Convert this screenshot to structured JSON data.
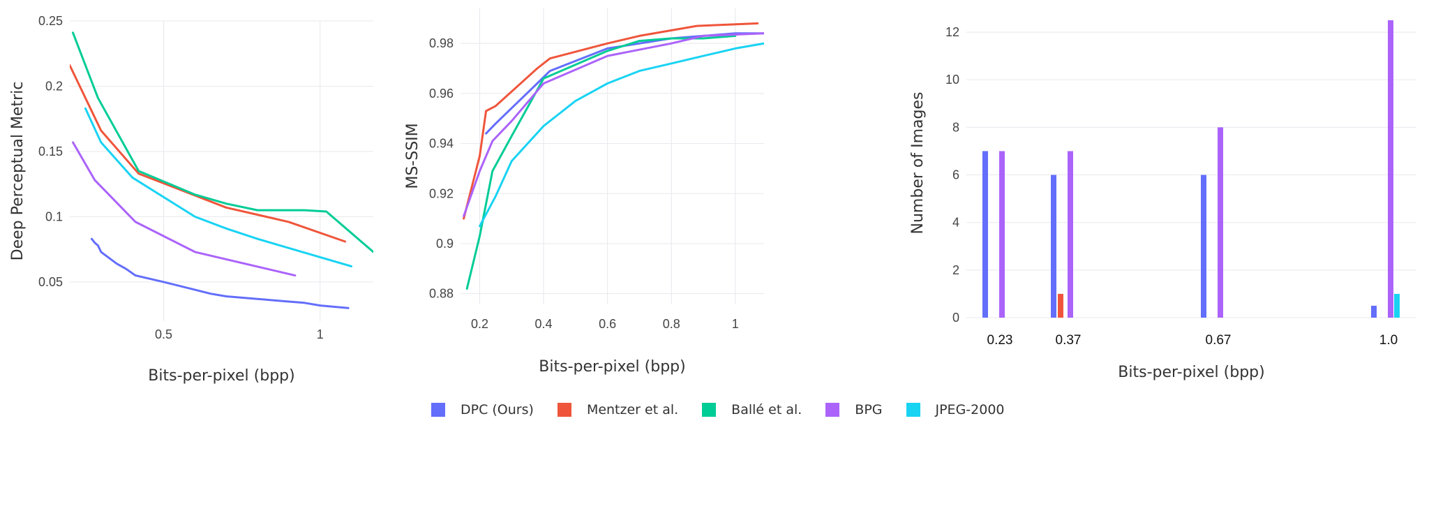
{
  "legend": [
    {
      "label": "DPC (Ours)",
      "color": "#636efa"
    },
    {
      "label": "Mentzer et al.",
      "color": "#ef553b"
    },
    {
      "label": "Ballé et al.",
      "color": "#00cc96"
    },
    {
      "label": "BPG",
      "color": "#ab63fa"
    },
    {
      "label": "JPEG-2000",
      "color": "#19d3f3"
    }
  ],
  "chart_data": [
    {
      "type": "line",
      "xlabel": "Bits-per-pixel (bpp)",
      "ylabel": "Deep Perceptual Metric",
      "xlim": [
        0.2,
        1.17
      ],
      "ylim": [
        0.02,
        0.25
      ],
      "xticks": [
        0.5,
        1
      ],
      "xtick_labels": [
        "0.5",
        "1"
      ],
      "yticks": [
        0.05,
        0.1,
        0.15,
        0.2,
        0.25
      ],
      "ytick_labels": [
        "0.05",
        "0.1",
        "0.15",
        "0.2",
        "0.25"
      ],
      "grid": true,
      "series": [
        {
          "name": "DPC (Ours)",
          "color": "#636efa",
          "x": [
            0.27,
            0.28,
            0.29,
            0.3,
            0.35,
            0.38,
            0.41,
            0.5,
            0.6,
            0.65,
            0.7,
            0.8,
            0.9,
            0.95,
            1.0,
            1.09
          ],
          "y": [
            0.083,
            0.08,
            0.078,
            0.073,
            0.064,
            0.06,
            0.055,
            0.05,
            0.044,
            0.041,
            0.039,
            0.037,
            0.035,
            0.034,
            0.032,
            0.03
          ]
        },
        {
          "name": "Mentzer et al.",
          "color": "#ef553b",
          "x": [
            0.2,
            0.3,
            0.42,
            0.7,
            0.9,
            1.08
          ],
          "y": [
            0.216,
            0.166,
            0.133,
            0.107,
            0.096,
            0.081
          ]
        },
        {
          "name": "Ballé et al.",
          "color": "#00cc96",
          "x": [
            0.21,
            0.29,
            0.42,
            0.6,
            0.7,
            0.8,
            0.95,
            1.02,
            1.17
          ],
          "y": [
            0.241,
            0.191,
            0.135,
            0.117,
            0.11,
            0.105,
            0.105,
            0.104,
            0.073
          ]
        },
        {
          "name": "BPG",
          "color": "#ab63fa",
          "x": [
            0.21,
            0.28,
            0.41,
            0.6,
            0.92
          ],
          "y": [
            0.157,
            0.128,
            0.096,
            0.073,
            0.055
          ]
        },
        {
          "name": "JPEG-2000",
          "color": "#19d3f3",
          "x": [
            0.25,
            0.3,
            0.4,
            0.6,
            0.7,
            0.8,
            0.9,
            1.0,
            1.1
          ],
          "y": [
            0.183,
            0.157,
            0.13,
            0.1,
            0.091,
            0.083,
            0.076,
            0.069,
            0.062
          ]
        }
      ]
    },
    {
      "type": "line",
      "xlabel": "Bits-per-pixel (bpp)",
      "ylabel": "MS-SSIM",
      "xlim": [
        0.14,
        1.09
      ],
      "ylim": [
        0.876,
        0.994
      ],
      "xticks": [
        0.2,
        0.4,
        0.6,
        0.8,
        1
      ],
      "xtick_labels": [
        "0.2",
        "0.4",
        "0.6",
        "0.8",
        "1"
      ],
      "yticks": [
        0.88,
        0.9,
        0.92,
        0.94,
        0.96,
        0.98
      ],
      "ytick_labels": [
        "0.88",
        "0.9",
        "0.92",
        "0.94",
        "0.96",
        "0.98"
      ],
      "grid": true,
      "series": [
        {
          "name": "DPC (Ours)",
          "color": "#636efa",
          "x": [
            0.22,
            0.25,
            0.38,
            0.42,
            0.6,
            0.8,
            0.9,
            1.0,
            1.09
          ],
          "y": [
            0.944,
            0.948,
            0.964,
            0.969,
            0.978,
            0.982,
            0.983,
            0.984,
            0.984
          ]
        },
        {
          "name": "Mentzer et al.",
          "color": "#ef553b",
          "x": [
            0.15,
            0.2,
            0.22,
            0.25,
            0.38,
            0.42,
            0.6,
            0.7,
            0.88,
            1.07
          ],
          "y": [
            0.91,
            0.935,
            0.953,
            0.955,
            0.97,
            0.974,
            0.98,
            0.983,
            0.987,
            0.988
          ]
        },
        {
          "name": "Ballé et al.",
          "color": "#00cc96",
          "x": [
            0.16,
            0.2,
            0.24,
            0.3,
            0.4,
            0.6,
            0.7,
            0.8,
            0.9,
            1.0
          ],
          "y": [
            0.882,
            0.903,
            0.929,
            0.943,
            0.966,
            0.977,
            0.981,
            0.982,
            0.982,
            0.983
          ]
        },
        {
          "name": "BPG",
          "color": "#ab63fa",
          "x": [
            0.15,
            0.2,
            0.24,
            0.3,
            0.4,
            0.6,
            0.8,
            0.9,
            1.09
          ],
          "y": [
            0.911,
            0.929,
            0.941,
            0.949,
            0.964,
            0.975,
            0.98,
            0.983,
            0.984
          ]
        },
        {
          "name": "JPEG-2000",
          "color": "#19d3f3",
          "x": [
            0.2,
            0.25,
            0.3,
            0.4,
            0.5,
            0.6,
            0.7,
            0.8,
            0.9,
            1.0,
            1.09
          ],
          "y": [
            0.907,
            0.919,
            0.933,
            0.947,
            0.957,
            0.964,
            0.969,
            0.972,
            0.975,
            0.978,
            0.98
          ]
        }
      ]
    },
    {
      "type": "bar",
      "xlabel": "Bits-per-pixel (bpp)",
      "ylabel": "Number of Images",
      "categories": [
        "0.23",
        "0.37",
        "0.67",
        "1.0"
      ],
      "ylim": [
        0,
        13
      ],
      "yticks": [
        0,
        2,
        4,
        6,
        8,
        10,
        12
      ],
      "ytick_labels": [
        "0",
        "2",
        "4",
        "6",
        "8",
        "10",
        "12"
      ],
      "grid": true,
      "series": [
        {
          "name": "DPC (Ours)",
          "color": "#636efa",
          "values": [
            7,
            6,
            6,
            0.5
          ]
        },
        {
          "name": "Mentzer et al.",
          "color": "#ef553b",
          "values": [
            0,
            1,
            0,
            0
          ]
        },
        {
          "name": "Ballé et al.",
          "color": "#00cc96",
          "values": [
            0,
            0,
            0,
            0
          ]
        },
        {
          "name": "BPG",
          "color": "#ab63fa",
          "values": [
            7,
            7,
            8,
            12.5
          ]
        },
        {
          "name": "JPEG-2000",
          "color": "#19d3f3",
          "values": [
            0,
            0,
            0,
            1
          ]
        }
      ]
    }
  ]
}
